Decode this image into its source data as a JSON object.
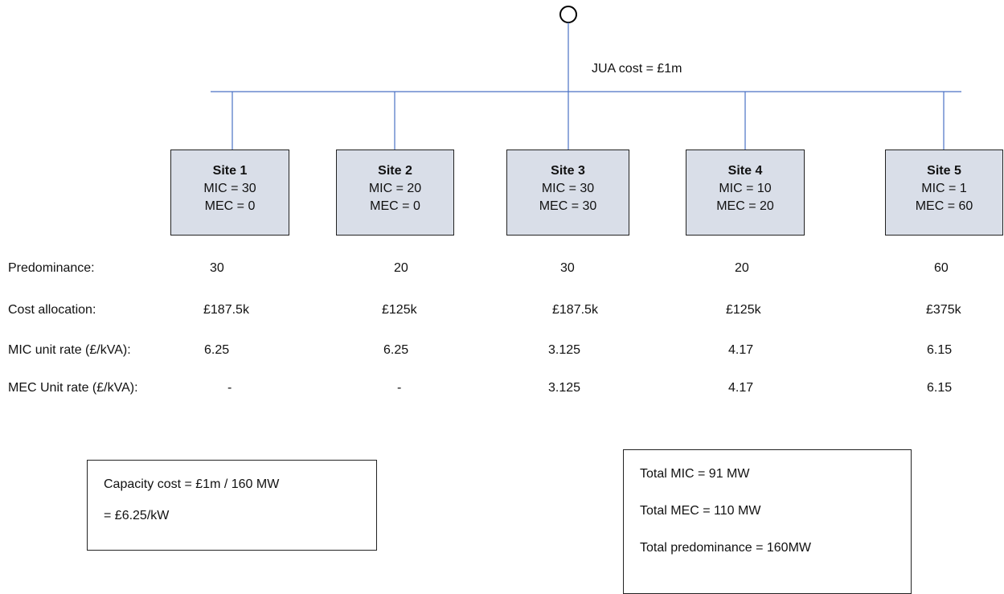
{
  "jua_label": "JUA cost = £1m",
  "sites": [
    {
      "name": "Site 1",
      "mic": "MIC = 30",
      "mec": "MEC = 0"
    },
    {
      "name": "Site 2",
      "mic": "MIC = 20",
      "mec": "MEC = 0"
    },
    {
      "name": "Site 3",
      "mic": "MIC = 30",
      "mec": "MEC = 30"
    },
    {
      "name": "Site 4",
      "mic": "MIC = 10",
      "mec": "MEC = 20"
    },
    {
      "name": "Site 5",
      "mic": "MIC = 1",
      "mec": "MEC = 60"
    }
  ],
  "rows": [
    {
      "label": "Predominance:",
      "values": [
        "30",
        "20",
        "30",
        "20",
        "60"
      ]
    },
    {
      "label": "Cost allocation:",
      "values": [
        "£187.5k",
        "£125k",
        "£187.5k",
        "£125k",
        "£375k"
      ]
    },
    {
      "label": "MIC unit rate (£/kVA):",
      "values": [
        "6.25",
        "6.25",
        "3.125",
        "4.17",
        "6.15"
      ]
    },
    {
      "label": "MEC Unit rate (£/kVA):",
      "values": [
        "-",
        "-",
        "3.125",
        "4.17",
        "6.15"
      ]
    }
  ],
  "capacity_box": {
    "line1": "Capacity cost = £1m / 160 MW",
    "line2": "= £6.25/kW"
  },
  "totals_box": {
    "line1": "Total MIC = 91 MW",
    "line2": "Total MEC = 110 MW",
    "line3": "Total predominance  = 160MW"
  }
}
